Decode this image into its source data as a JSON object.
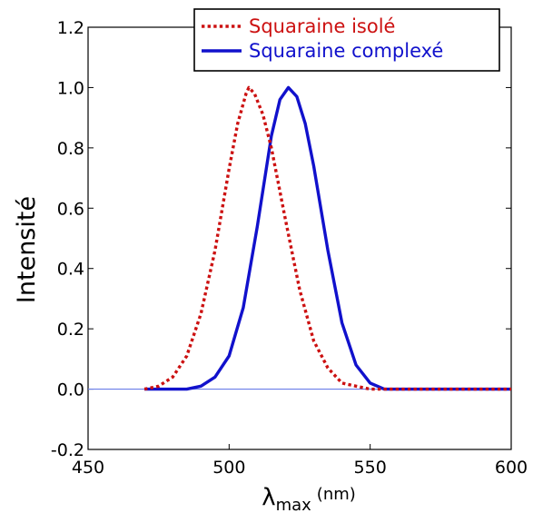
{
  "chart_data": {
    "type": "line",
    "title": "",
    "xlabel": "λmax (nm)",
    "xlabel_main": "λ",
    "xlabel_sub": "max",
    "xlabel_unit": "(nm)",
    "ylabel": "Intensité",
    "xlim": [
      450,
      600
    ],
    "ylim": [
      -0.2,
      1.2
    ],
    "xticks": [
      "450",
      "500",
      "550",
      "600"
    ],
    "yticks": [
      "-0.2",
      "0.0",
      "0.2",
      "0.4",
      "0.6",
      "0.8",
      "1.0",
      "1.2"
    ],
    "xtick_values": [
      450,
      500,
      550,
      600
    ],
    "ytick_values": [
      -0.2,
      0.0,
      0.2,
      0.4,
      0.6,
      0.8,
      1.0,
      1.2
    ],
    "grid": false,
    "legend_position": "top-right",
    "baseline": {
      "y": 0.0,
      "x": [
        450,
        600
      ],
      "color": "#6a7ee8"
    },
    "series": [
      {
        "name": "Squaraine isolé",
        "color": "#cc1111",
        "style": "dotted",
        "x": [
          470,
          475,
          480,
          485,
          490,
          495,
          500,
          503,
          506,
          507,
          509,
          512,
          515,
          520,
          525,
          530,
          535,
          540,
          545,
          550,
          555,
          560,
          565,
          570,
          580,
          590,
          600
        ],
        "y": [
          0.0,
          0.01,
          0.04,
          0.11,
          0.25,
          0.46,
          0.73,
          0.88,
          0.98,
          1.0,
          0.98,
          0.91,
          0.8,
          0.56,
          0.33,
          0.16,
          0.07,
          0.02,
          0.01,
          0.0,
          0.0,
          0.0,
          0.0,
          0.0,
          0.0,
          0.0,
          0.0
        ]
      },
      {
        "name": "Squaraine complexé",
        "color": "#1111cc",
        "style": "solid",
        "x": [
          470,
          475,
          480,
          485,
          490,
          495,
          500,
          505,
          510,
          515,
          518,
          521,
          524,
          527,
          530,
          535,
          540,
          545,
          550,
          555,
          560,
          565,
          570,
          580,
          590,
          600
        ],
        "y": [
          0.0,
          0.0,
          0.0,
          0.0,
          0.01,
          0.04,
          0.11,
          0.27,
          0.54,
          0.84,
          0.96,
          1.0,
          0.97,
          0.88,
          0.74,
          0.46,
          0.22,
          0.08,
          0.02,
          0.0,
          0.0,
          0.0,
          0.0,
          0.0,
          0.0,
          0.0
        ]
      }
    ]
  }
}
